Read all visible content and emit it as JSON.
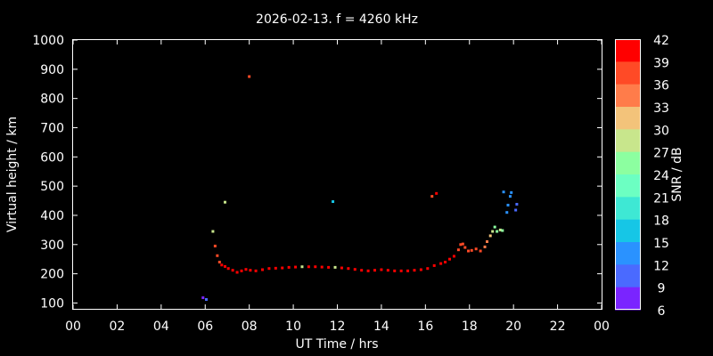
{
  "chart_data": {
    "type": "scatter",
    "title": "2026-02-13. f = 4260 kHz",
    "xlabel": "UT Time / hrs",
    "ylabel": "Virtual height / km",
    "xlim": [
      0,
      24
    ],
    "ylim": [
      80,
      1000
    ],
    "xticks": [
      "00",
      "02",
      "04",
      "06",
      "08",
      "10",
      "12",
      "14",
      "16",
      "18",
      "20",
      "22",
      "00"
    ],
    "yticks": [
      100,
      200,
      300,
      400,
      500,
      600,
      700,
      800,
      900,
      1000
    ],
    "grid": false,
    "colorbar": {
      "label": "SNR / dB",
      "ticks": [
        42,
        39,
        36,
        33,
        30,
        27,
        24,
        21,
        18,
        15,
        12,
        9,
        6
      ],
      "colors": [
        "#ff0000",
        "#ff4a26",
        "#ff7c4a",
        "#f3c37a",
        "#c8e68c",
        "#8cffa0",
        "#6cffc2",
        "#3ee8d4",
        "#16c6e6",
        "#2a92ff",
        "#4a6aff",
        "#7a24ff"
      ]
    },
    "series": [
      {
        "points": [
          [
            5.9,
            118,
            9
          ],
          [
            6.05,
            112,
            11
          ],
          [
            6.35,
            345,
            29
          ],
          [
            6.45,
            295,
            37
          ],
          [
            6.55,
            262,
            38
          ],
          [
            6.65,
            240,
            39
          ],
          [
            6.75,
            230,
            40
          ],
          [
            6.9,
            225,
            40
          ],
          [
            7.05,
            218,
            41
          ],
          [
            7.25,
            212,
            41
          ],
          [
            7.45,
            205,
            42
          ],
          [
            7.65,
            210,
            41
          ],
          [
            7.85,
            215,
            41
          ],
          [
            8.05,
            212,
            41
          ],
          [
            8.3,
            210,
            41
          ],
          [
            8.6,
            214,
            41
          ],
          [
            8.9,
            218,
            41
          ],
          [
            9.2,
            219,
            41
          ],
          [
            9.5,
            220,
            41
          ],
          [
            9.8,
            222,
            40
          ],
          [
            10.1,
            223,
            40
          ],
          [
            10.4,
            224,
            29
          ],
          [
            10.7,
            224,
            40
          ],
          [
            11.0,
            224,
            40
          ],
          [
            11.3,
            223,
            40
          ],
          [
            11.6,
            222,
            40
          ],
          [
            11.9,
            222,
            29
          ],
          [
            12.2,
            220,
            40
          ],
          [
            12.5,
            218,
            41
          ],
          [
            12.8,
            215,
            41
          ],
          [
            13.1,
            212,
            41
          ],
          [
            13.4,
            210,
            41
          ],
          [
            13.7,
            212,
            41
          ],
          [
            14.0,
            214,
            41
          ],
          [
            14.3,
            212,
            41
          ],
          [
            14.6,
            210,
            41
          ],
          [
            14.9,
            210,
            41
          ],
          [
            15.2,
            210,
            41
          ],
          [
            15.5,
            212,
            41
          ],
          [
            15.8,
            214,
            41
          ],
          [
            16.1,
            218,
            40
          ],
          [
            16.4,
            228,
            40
          ],
          [
            16.7,
            235,
            41
          ],
          [
            16.9,
            240,
            40
          ],
          [
            17.1,
            250,
            40
          ],
          [
            17.3,
            260,
            41
          ],
          [
            17.5,
            282,
            39
          ],
          [
            17.6,
            300,
            39
          ],
          [
            17.7,
            302,
            38
          ],
          [
            17.8,
            290,
            39
          ],
          [
            17.95,
            278,
            39
          ],
          [
            18.1,
            280,
            39
          ],
          [
            18.3,
            285,
            38
          ],
          [
            18.5,
            278,
            39
          ],
          [
            18.7,
            292,
            36
          ],
          [
            18.8,
            310,
            34
          ],
          [
            18.95,
            330,
            31
          ],
          [
            19.05,
            345,
            29
          ],
          [
            19.15,
            360,
            27
          ],
          [
            19.25,
            345,
            26
          ],
          [
            19.4,
            350,
            28
          ],
          [
            19.5,
            348,
            26
          ],
          [
            19.55,
            480,
            15
          ],
          [
            19.7,
            410,
            14
          ],
          [
            19.75,
            435,
            15
          ],
          [
            19.85,
            465,
            13
          ],
          [
            19.9,
            478,
            14
          ],
          [
            20.1,
            418,
            11
          ],
          [
            20.15,
            438,
            12
          ],
          [
            6.9,
            445,
            28
          ],
          [
            8.0,
            875,
            37
          ],
          [
            11.8,
            447,
            17
          ],
          [
            16.3,
            465,
            39
          ],
          [
            16.5,
            475,
            40
          ]
        ]
      }
    ]
  }
}
